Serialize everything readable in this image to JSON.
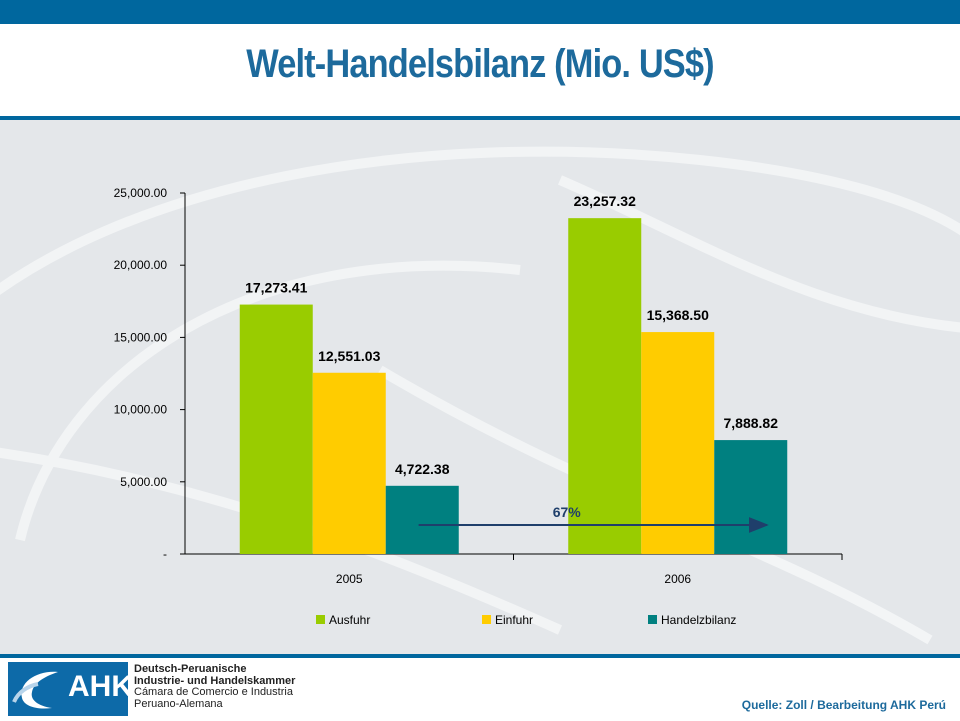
{
  "header": {
    "title": "Welt-Handelsbilanz (Mio. US$)"
  },
  "chart_data": {
    "type": "bar",
    "categories": [
      "2005",
      "2006"
    ],
    "series": [
      {
        "name": "Ausfuhr",
        "values": [
          17273.41,
          23257.32
        ],
        "labels": [
          "17,273.41",
          "23,257.32"
        ],
        "color": "#99cc00"
      },
      {
        "name": "Einfuhr",
        "values": [
          12551.03,
          15368.5
        ],
        "labels": [
          "12,551.03",
          "15,368.50"
        ],
        "color": "#ffcc00"
      },
      {
        "name": "Handelzbilanz",
        "values": [
          4722.38,
          7888.82
        ],
        "labels": [
          "4,722.38",
          "7,888.82"
        ],
        "color": "#008080"
      }
    ],
    "yticks": [
      {
        "value": 0,
        "label": "-"
      },
      {
        "value": 5000,
        "label": "5,000.00"
      },
      {
        "value": 10000,
        "label": "10,000.00"
      },
      {
        "value": 15000,
        "label": "15,000.00"
      },
      {
        "value": 20000,
        "label": "20,000.00"
      },
      {
        "value": 25000,
        "label": "25,000.00"
      }
    ],
    "ylim": [
      0,
      25000
    ],
    "grid": false,
    "legend": "bottom",
    "annotation": {
      "text": "67%",
      "from": "2005 Handelzbilanz",
      "to": "2006 Handelzbilanz"
    }
  },
  "footer": {
    "logo_text": "AHK",
    "org_lines": [
      "Deutsch-Peruanische",
      "Industrie- und Handelskammer",
      "Cámara de Comercio e Industria",
      "Peruano-Alemana"
    ],
    "source": "Quelle: Zoll / Bearbeitung AHK Perú"
  }
}
